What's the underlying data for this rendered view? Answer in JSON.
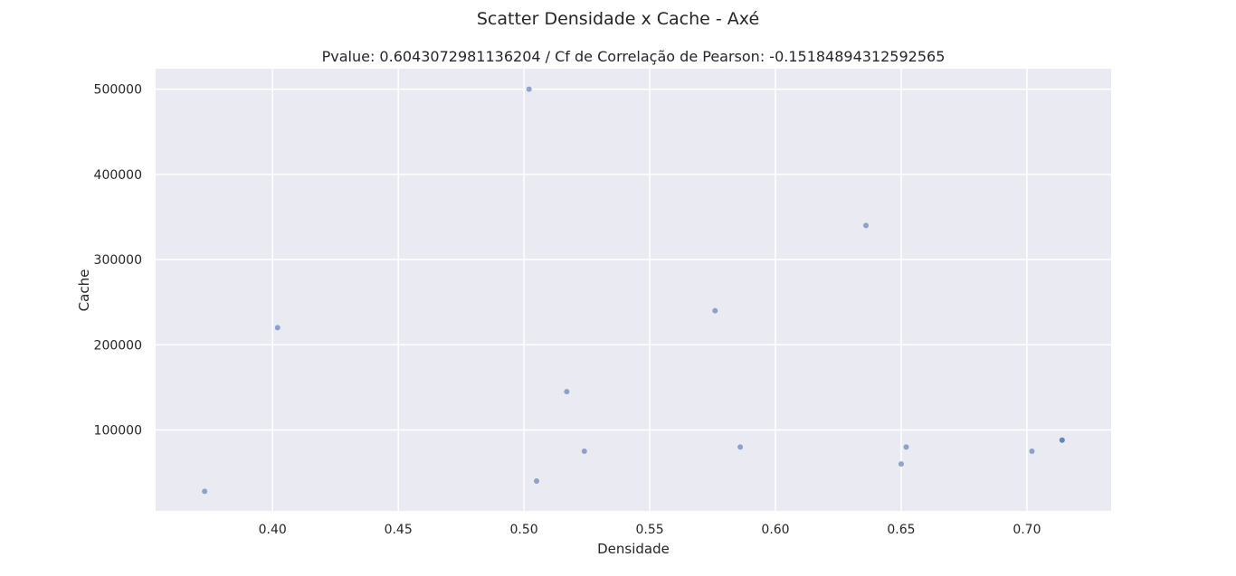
{
  "chart_data": {
    "type": "scatter",
    "suptitle": "Scatter Densidade x Cache - Axé",
    "title": "Pvalue: 0.6043072981136204 / Cf de Correlação de Pearson: -0.15184894312592565",
    "xlabel": "Densidade",
    "ylabel": "Cache",
    "xlim": [
      0.3535,
      0.7335
    ],
    "ylim": [
      5000,
      524000
    ],
    "xticks": [
      0.4,
      0.45,
      0.5,
      0.55,
      0.6,
      0.65,
      0.7
    ],
    "xtick_labels": [
      "0.40",
      "0.45",
      "0.50",
      "0.55",
      "0.60",
      "0.65",
      "0.70"
    ],
    "yticks": [
      100000,
      200000,
      300000,
      400000,
      500000
    ],
    "ytick_labels": [
      "100000",
      "200000",
      "300000",
      "400000",
      "500000"
    ],
    "grid": true,
    "background": "#eaeaf2",
    "grid_color": "#ffffff",
    "point_color": "#4c72b0",
    "points": [
      {
        "x": 0.373,
        "y": 28000
      },
      {
        "x": 0.402,
        "y": 220000
      },
      {
        "x": 0.502,
        "y": 500000
      },
      {
        "x": 0.505,
        "y": 40000
      },
      {
        "x": 0.517,
        "y": 145000
      },
      {
        "x": 0.524,
        "y": 75000
      },
      {
        "x": 0.576,
        "y": 240000
      },
      {
        "x": 0.586,
        "y": 80000
      },
      {
        "x": 0.636,
        "y": 340000
      },
      {
        "x": 0.65,
        "y": 60000
      },
      {
        "x": 0.652,
        "y": 80000
      },
      {
        "x": 0.702,
        "y": 75000
      },
      {
        "x": 0.714,
        "y": 88000
      },
      {
        "x": 0.714,
        "y": 88000
      }
    ]
  }
}
